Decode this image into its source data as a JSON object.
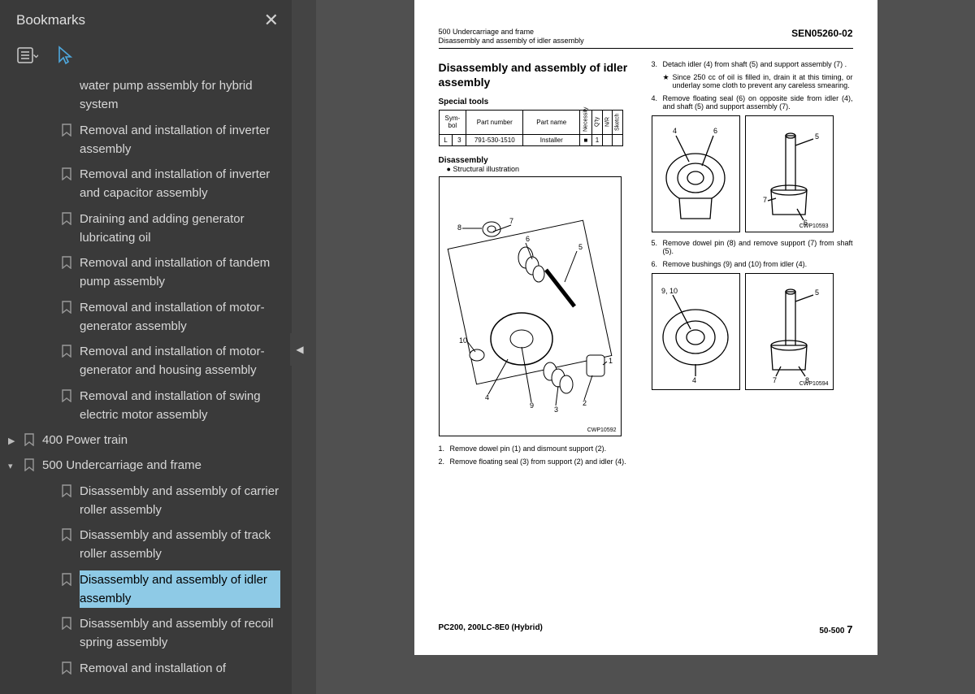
{
  "sidebar": {
    "title": "Bookmarks",
    "items": [
      {
        "depth": 1,
        "label": "water pump assembly for hybrid system",
        "continuation": true
      },
      {
        "depth": 1,
        "label": "Removal and installation of inverter assembly"
      },
      {
        "depth": 1,
        "label": "Removal and installation of inverter and capacitor assembly"
      },
      {
        "depth": 1,
        "label": "Draining and adding generator lubricating oil"
      },
      {
        "depth": 1,
        "label": "Removal and installation of tandem pump assembly"
      },
      {
        "depth": 1,
        "label": "Removal and installation of motor-generator assembly"
      },
      {
        "depth": 1,
        "label": "Removal and installation of motor-generator and housing assembly"
      },
      {
        "depth": 1,
        "label": "Removal and installation of swing electric motor assembly"
      },
      {
        "depth": 0,
        "label": "400 Power train",
        "arrow": "right"
      },
      {
        "depth": 0,
        "label": "500 Undercarriage and frame",
        "arrow": "down"
      },
      {
        "depth": 1,
        "label": "Disassembly and assembly of carrier roller assembly"
      },
      {
        "depth": 1,
        "label": "Disassembly and assembly of track roller assembly"
      },
      {
        "depth": 1,
        "label": "Disassembly and assembly of idler assembly",
        "selected": true
      },
      {
        "depth": 1,
        "label": "Disassembly and assembly of recoil spring assembly"
      },
      {
        "depth": 1,
        "label": "Removal and installation of"
      }
    ]
  },
  "gutter": {
    "dimensions": "8,26 x 11,69 in"
  },
  "doc": {
    "header_line1": "500 Undercarriage and frame",
    "header_line2": "Disassembly and assembly of idler assembly",
    "sen": "SEN05260-02",
    "title": "Disassembly and assembly of idler assembly",
    "special_tools": "Special tools",
    "table": {
      "h_symbol": "Sym-\nbol",
      "h_partnum": "Part number",
      "h_partname": "Part name",
      "h_nec": "Necessity",
      "h_qty": "Q'ty",
      "h_nr": "N/R",
      "h_sketch": "Sketch",
      "r_sym": "L",
      "r_sub": "3",
      "r_partnum": "791-530-1510",
      "r_partname": "Installer",
      "r_nec": "■",
      "r_qty": "1"
    },
    "disassembly": "Disassembly",
    "structural": "Structural illustration",
    "dia1": "CWP10592",
    "step1": "Remove dowel pin (1) and dismount support (2).",
    "step2": "Remove floating seal (3) from support (2) and idler (4).",
    "step3": "Detach idler (4) from shaft (5) and support assembly (7) .",
    "note3": "Since 250 cc of oil is filled in, drain it at this timing, or underlay some cloth to prevent any careless smearing.",
    "step4": "Remove floating seal (6) on opposite side from idler (4), and shaft (5) and support assembly (7).",
    "dia2": "CWP10593",
    "step5": "Remove dowel pin (8) and remove support (7) from shaft (5).",
    "step6": "Remove bushings (9) and (10) from idler (4).",
    "dia3": "CWP10594",
    "footer_left": "PC200, 200LC-8E0 (Hybrid)",
    "footer_right_prefix": "50-500",
    "footer_right_page": "7"
  }
}
